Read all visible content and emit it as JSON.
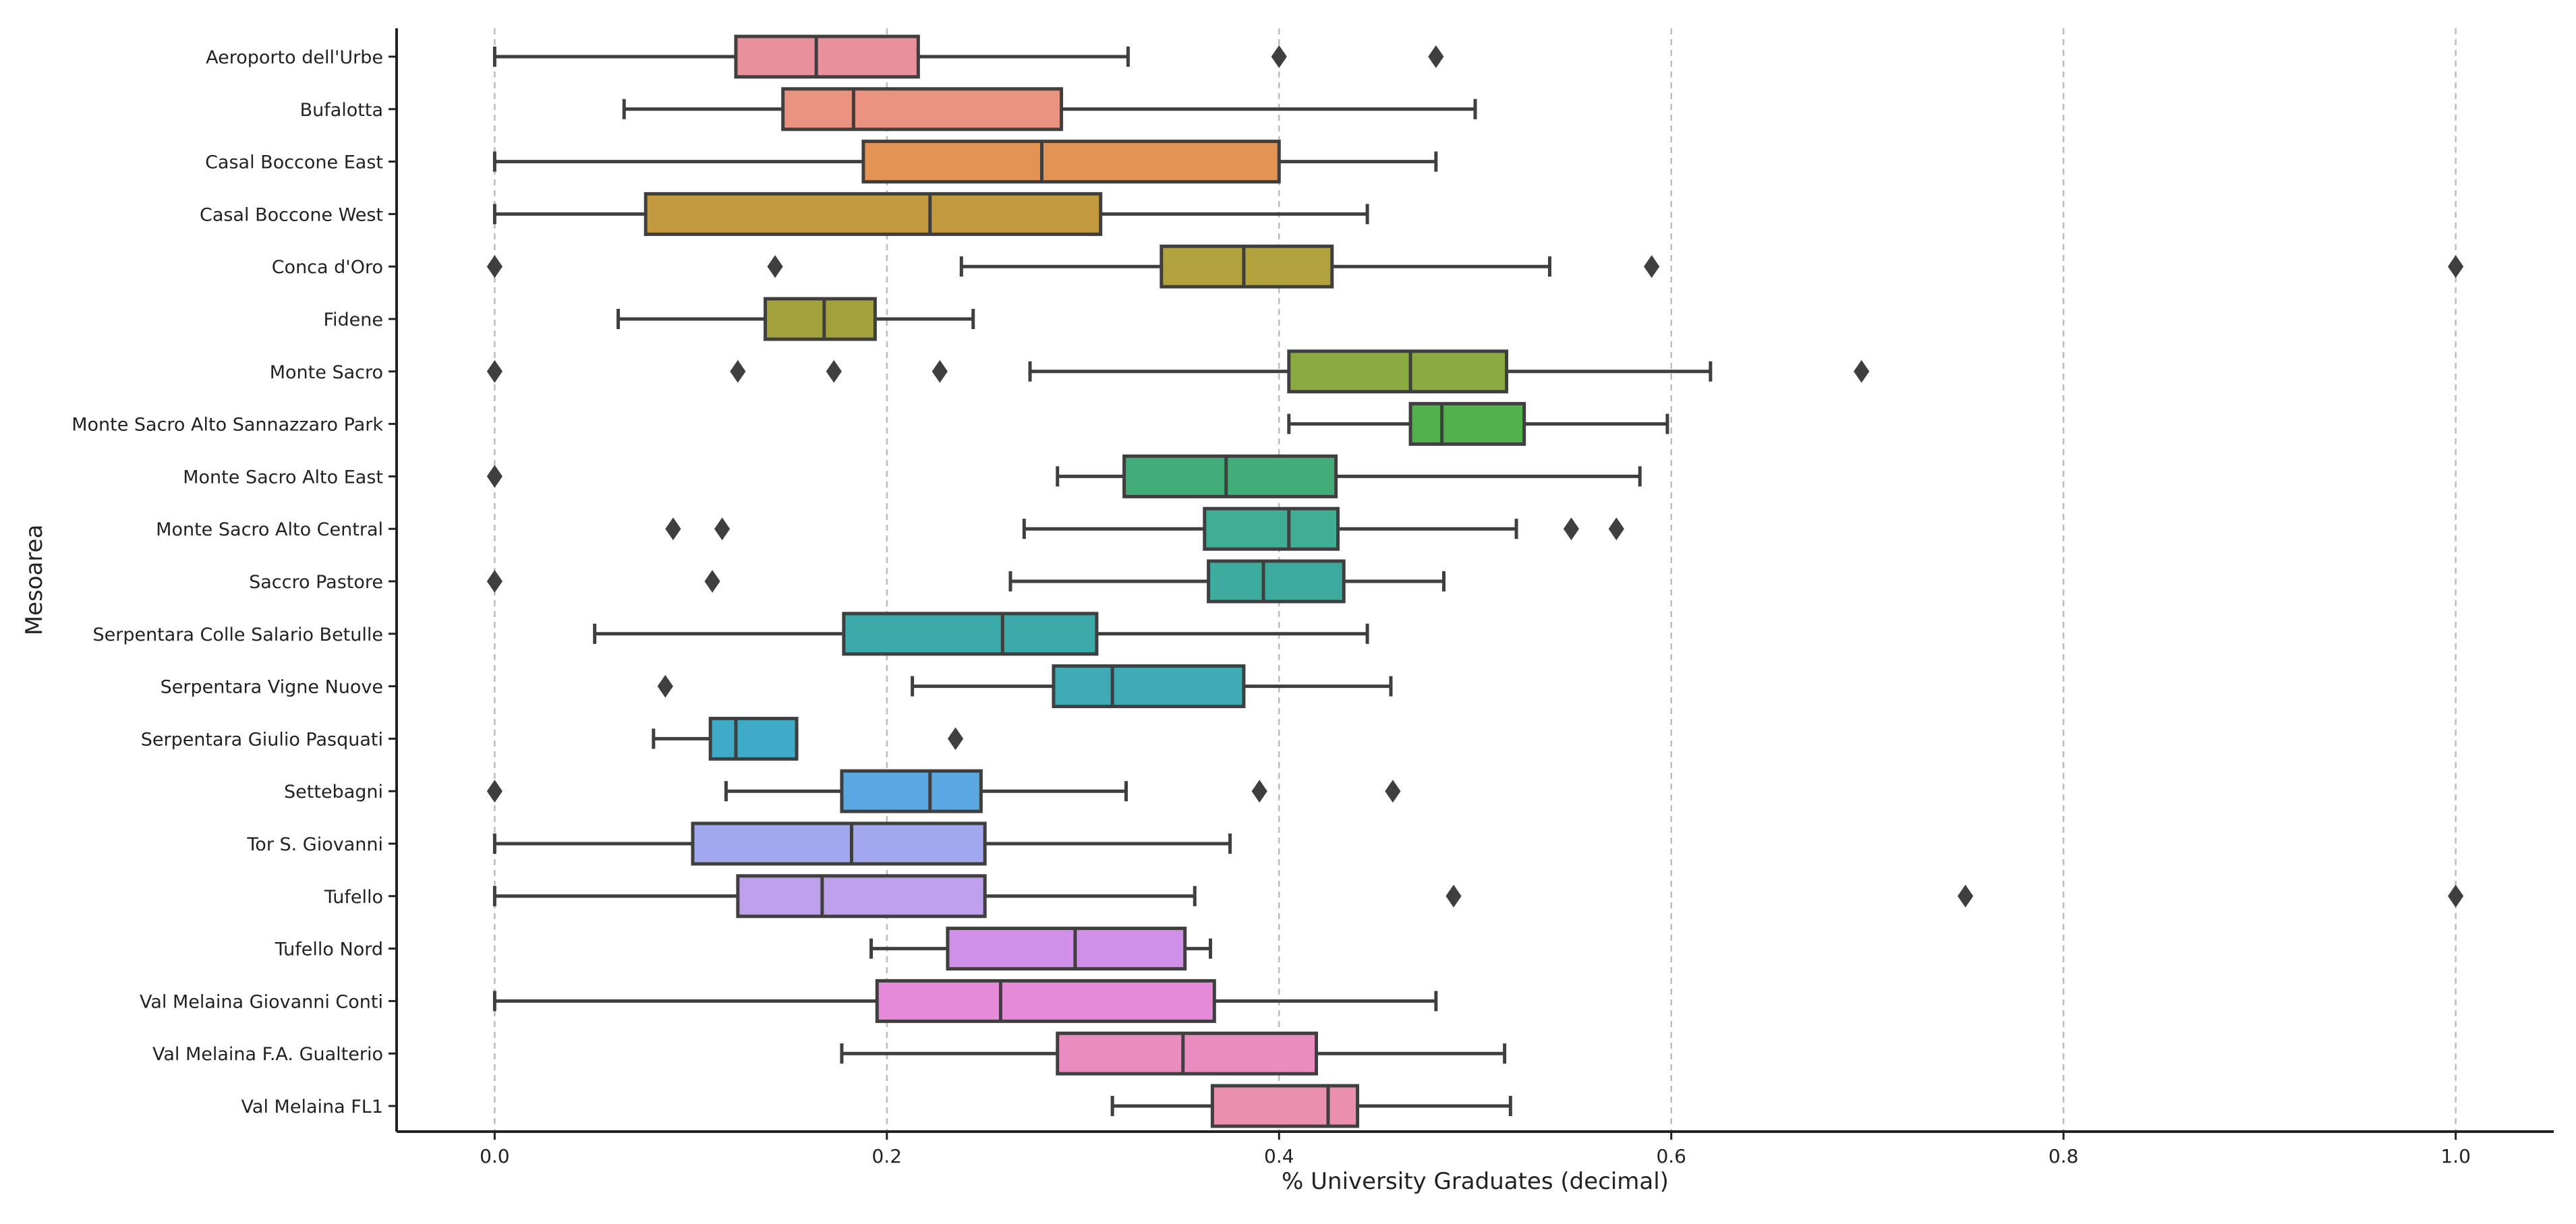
{
  "chart_data": {
    "type": "boxplot",
    "orientation": "horizontal",
    "xlabel": "% University Graduates (decimal)",
    "ylabel": "Mesoarea",
    "xlim": [
      -0.05,
      1.05
    ],
    "xticks": [
      0.0,
      0.2,
      0.4,
      0.6,
      0.8,
      1.0
    ],
    "xtick_labels": [
      "0.0",
      "0.2",
      "0.4",
      "0.6",
      "0.8",
      "1.0"
    ],
    "grid": "vertical dashed",
    "categories": [
      {
        "name": "Aeroporto dell'Urbe",
        "whislo": 0.0,
        "q1": 0.123,
        "median": 0.164,
        "q3": 0.216,
        "whishi": 0.323,
        "fliers": [
          0.4,
          0.48
        ],
        "color": "#e8909b"
      },
      {
        "name": "Bufalotta",
        "whislo": 0.066,
        "q1": 0.147,
        "median": 0.183,
        "q3": 0.289,
        "whishi": 0.5,
        "fliers": [],
        "color": "#ea9380"
      },
      {
        "name": "Casal Boccone East",
        "whislo": 0.0,
        "q1": 0.188,
        "median": 0.279,
        "q3": 0.4,
        "whishi": 0.48,
        "fliers": [],
        "color": "#e39455"
      },
      {
        "name": "Casal Boccone West",
        "whislo": 0.0,
        "q1": 0.077,
        "median": 0.222,
        "q3": 0.309,
        "whishi": 0.445,
        "fliers": [],
        "color": "#c49a3f"
      },
      {
        "name": "Conca d'Oro",
        "whislo": 0.238,
        "q1": 0.34,
        "median": 0.382,
        "q3": 0.427,
        "whishi": 0.538,
        "fliers": [
          0.0,
          0.143,
          0.59,
          1.0
        ],
        "color": "#b2a33f"
      },
      {
        "name": "Fidene",
        "whislo": 0.063,
        "q1": 0.138,
        "median": 0.168,
        "q3": 0.194,
        "whishi": 0.244,
        "fliers": [],
        "color": "#a3a13c"
      },
      {
        "name": "Monte Sacro",
        "whislo": 0.273,
        "q1": 0.405,
        "median": 0.467,
        "q3": 0.516,
        "whishi": 0.62,
        "fliers": [
          0.0,
          0.124,
          0.173,
          0.227,
          0.697
        ],
        "color": "#8aab3f"
      },
      {
        "name": "Monte Sacro Alto Sannazzaro Park",
        "whislo": 0.405,
        "q1": 0.467,
        "median": 0.483,
        "q3": 0.525,
        "whishi": 0.598,
        "fliers": [],
        "color": "#52b14c"
      },
      {
        "name": "Monte Sacro Alto East",
        "whislo": 0.287,
        "q1": 0.321,
        "median": 0.373,
        "q3": 0.429,
        "whishi": 0.584,
        "fliers": [
          0.0
        ],
        "color": "#43ad79"
      },
      {
        "name": "Monte Sacro Alto Central",
        "whislo": 0.27,
        "q1": 0.362,
        "median": 0.405,
        "q3": 0.43,
        "whishi": 0.521,
        "fliers": [
          0.091,
          0.116,
          0.549,
          0.572
        ],
        "color": "#3fae93"
      },
      {
        "name": "Saccro Pastore",
        "whislo": 0.263,
        "q1": 0.364,
        "median": 0.392,
        "q3": 0.433,
        "whishi": 0.484,
        "fliers": [
          0.0,
          0.111
        ],
        "color": "#3eab9f"
      },
      {
        "name": "Serpentara Colle Salario Betulle",
        "whislo": 0.051,
        "q1": 0.178,
        "median": 0.259,
        "q3": 0.307,
        "whishi": 0.445,
        "fliers": [],
        "color": "#3caaa8"
      },
      {
        "name": "Serpentara Vigne Nuove",
        "whislo": 0.213,
        "q1": 0.285,
        "median": 0.315,
        "q3": 0.382,
        "whishi": 0.457,
        "fliers": [
          0.087
        ],
        "color": "#3fabb7"
      },
      {
        "name": "Serpentara Giulio Pasquati",
        "whislo": 0.081,
        "q1": 0.11,
        "median": 0.123,
        "q3": 0.154,
        "whishi": 0.154,
        "fliers": [
          0.235
        ],
        "color": "#40aac9"
      },
      {
        "name": "Settebagni",
        "whislo": 0.118,
        "q1": 0.177,
        "median": 0.222,
        "q3": 0.248,
        "whishi": 0.322,
        "fliers": [
          0.0,
          0.39,
          0.458
        ],
        "color": "#5aa8e2"
      },
      {
        "name": "Tor S. Giovanni",
        "whislo": 0.0,
        "q1": 0.101,
        "median": 0.182,
        "q3": 0.25,
        "whishi": 0.375,
        "fliers": [],
        "color": "#a1a8ee"
      },
      {
        "name": "Tufello",
        "whislo": 0.0,
        "q1": 0.124,
        "median": 0.167,
        "q3": 0.25,
        "whishi": 0.357,
        "fliers": [
          0.489,
          0.75,
          1.0
        ],
        "color": "#bd9fec"
      },
      {
        "name": "Tufello Nord",
        "whislo": 0.192,
        "q1": 0.231,
        "median": 0.296,
        "q3": 0.352,
        "whishi": 0.365,
        "fliers": [],
        "color": "#d08fe9"
      },
      {
        "name": "Val Melaina Giovanni Conti",
        "whislo": 0.0,
        "q1": 0.195,
        "median": 0.258,
        "q3": 0.367,
        "whishi": 0.48,
        "fliers": [],
        "color": "#e58ad9"
      },
      {
        "name": "Val Melaina F.A. Gualterio",
        "whislo": 0.177,
        "q1": 0.287,
        "median": 0.351,
        "q3": 0.419,
        "whishi": 0.515,
        "fliers": [],
        "color": "#eb8cc1"
      },
      {
        "name": "Val Melaina FL1",
        "whislo": 0.315,
        "q1": 0.366,
        "median": 0.425,
        "q3": 0.44,
        "whishi": 0.518,
        "fliers": [],
        "color": "#ea8fae"
      }
    ]
  }
}
